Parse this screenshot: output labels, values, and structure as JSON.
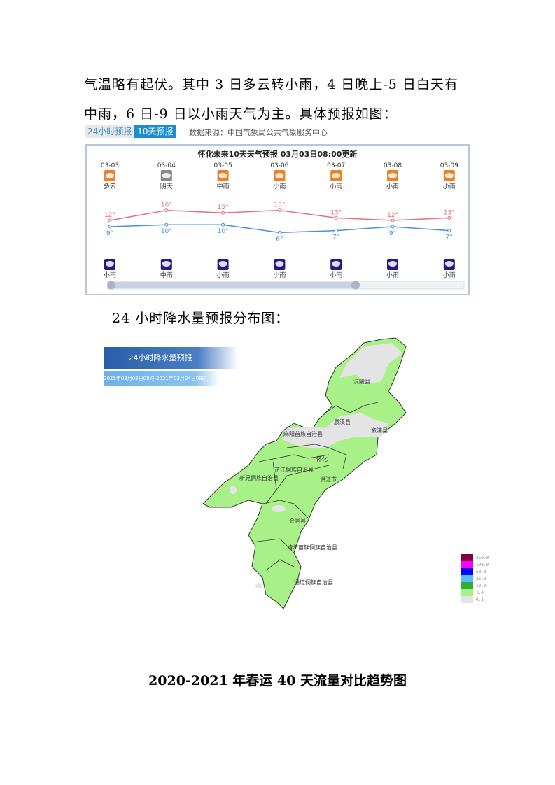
{
  "paragraph": {
    "line1": "气温略有起伏。其中 3 日多云转小雨，4 日晚上-5 日白天有",
    "line2": "中雨，6 日-9 日以小雨天气为主。具体预报如图："
  },
  "widget": {
    "tabs": [
      {
        "label": "24小时预报",
        "active": false
      },
      {
        "label": "10天预报",
        "active": true
      }
    ],
    "source": "数据来源：中国气象局公共气象服务中心",
    "title": "怀化未来10天天气预报   03月03日08:00更新",
    "days": [
      {
        "date": "03-03",
        "day_icon": "partly-cloudy-icon",
        "day_weather": "多云",
        "high": "12°",
        "low": "9°",
        "night_icon": "night-rain-icon",
        "night_weather": "小雨"
      },
      {
        "date": "03-04",
        "day_icon": "overcast-icon",
        "day_weather": "阴天",
        "high": "16°",
        "low": "10°",
        "night_icon": "night-rain-icon",
        "night_weather": "中雨"
      },
      {
        "date": "03-05",
        "day_icon": "rain-icon",
        "day_weather": "中雨",
        "high": "15°",
        "low": "10°",
        "night_icon": "night-rain-icon",
        "night_weather": "小雨"
      },
      {
        "date": "03-06",
        "day_icon": "rain-icon",
        "day_weather": "小雨",
        "high": "16°",
        "low": "6°",
        "night_icon": "night-rain-icon",
        "night_weather": "小雨"
      },
      {
        "date": "03-07",
        "day_icon": "rain-icon",
        "day_weather": "小雨",
        "high": "13°",
        "low": "7°",
        "night_icon": "night-rain-icon",
        "night_weather": "小雨"
      },
      {
        "date": "03-08",
        "day_icon": "rain-icon",
        "day_weather": "小雨",
        "high": "12°",
        "low": "9°",
        "night_icon": "night-rain-icon",
        "night_weather": "小雨"
      },
      {
        "date": "03-09",
        "day_icon": "rain-icon",
        "day_weather": "小雨",
        "high": "13°",
        "low": "7°",
        "night_icon": "night-rain-icon",
        "night_weather": "小雨"
      }
    ],
    "highs": [
      12,
      16,
      15,
      16,
      13,
      12,
      13
    ],
    "lows": [
      9,
      10,
      10,
      6,
      7,
      9,
      7
    ],
    "colors": {
      "high": "#e8707a",
      "low": "#4a90e0"
    }
  },
  "caption": "24 小时降水量预报分布图：",
  "map": {
    "title": "24小时降水量预报",
    "period": "2021年03月03日08时-2021年03月04日08时",
    "regions": [
      "沅陵县",
      "辰溪县",
      "溆浦县",
      "麻阳苗族自治县",
      "怀化",
      "芷江侗族自治县",
      "新晃侗族自治县",
      "洪江市",
      "会同县",
      "靖州苗族侗族自治县",
      "通道侗族自治县"
    ],
    "legend": [
      {
        "value": "250.0",
        "color": "#800040"
      },
      {
        "value": "100.0",
        "color": "#ff00ff"
      },
      {
        "value": "50.0",
        "color": "#0000ff"
      },
      {
        "value": "25.0",
        "color": "#60b8ff"
      },
      {
        "value": "10.0",
        "color": "#30b030"
      },
      {
        "value": "1.0",
        "color": "#a8f088"
      },
      {
        "value": "0.1",
        "color": "#e4e4e4"
      }
    ]
  },
  "bottom_title": "2020-2021 年春运 40 天流量对比趋势图"
}
